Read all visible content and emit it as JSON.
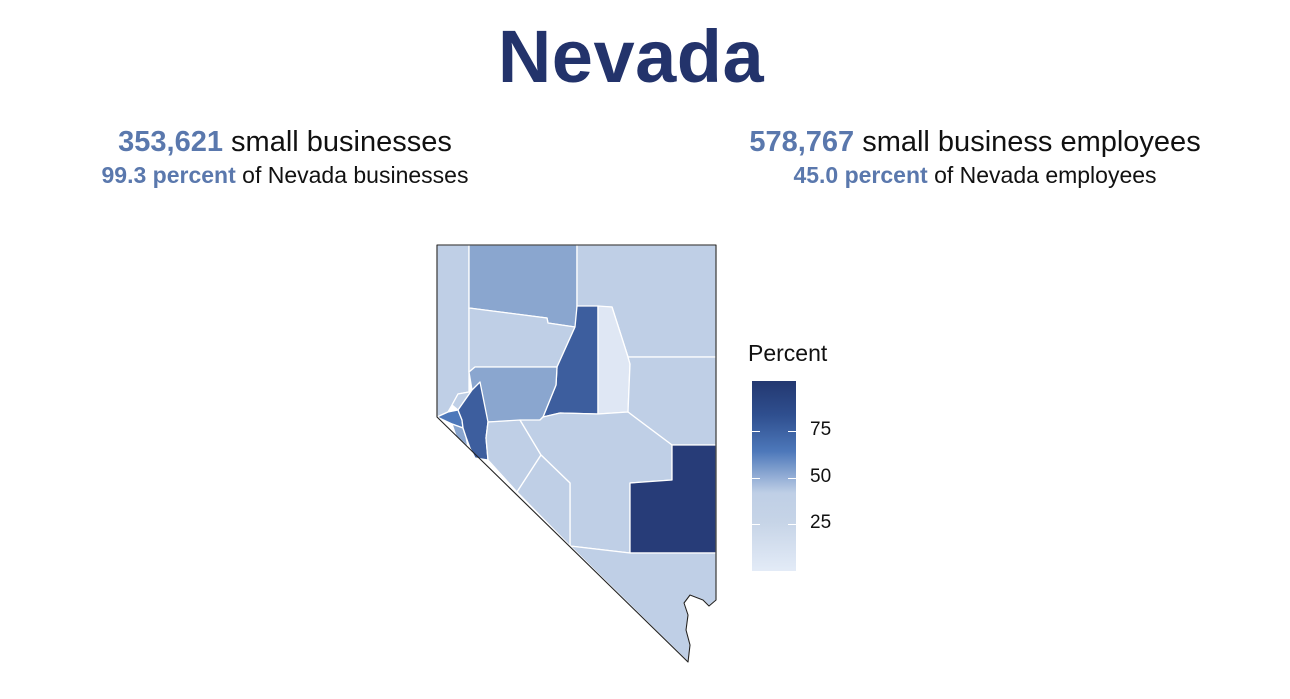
{
  "title": "Nevada",
  "left_stat": {
    "value": "353,621",
    "label": "small businesses",
    "percent": "99.3 percent",
    "percent_label": "of Nevada businesses"
  },
  "right_stat": {
    "value": "578,767",
    "label": "small business employees",
    "percent": "45.0 percent",
    "percent_label": "of Nevada employees"
  },
  "legend": {
    "title": "Percent",
    "ticks": [
      "75",
      "50",
      "25"
    ],
    "tick_values": [
      75,
      50,
      25
    ],
    "color_low": "#e3ebf7",
    "color_high": "#233870"
  },
  "colors": {
    "title": "#23336b",
    "highlight_number": "#5a78ad",
    "dark_county": "#273c78",
    "mid_dark_county": "#3d5e9e",
    "mid_county": "#8aa6cf",
    "light_county": "#bfcfe6",
    "lightest_county": "#dfe7f4"
  }
}
